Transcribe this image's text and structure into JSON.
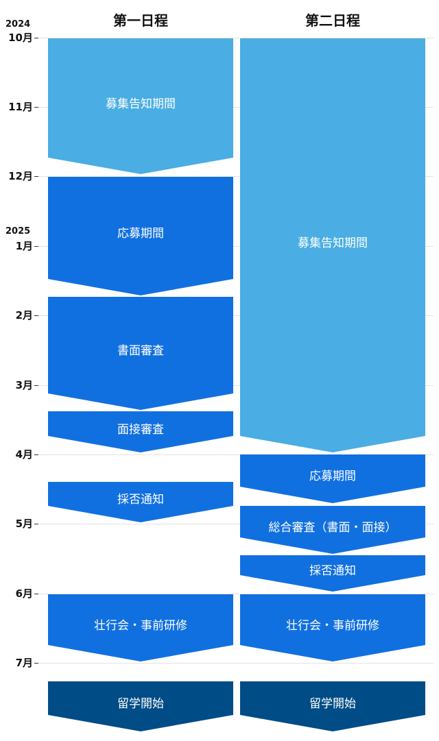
{
  "columns": {
    "first": "第一日程",
    "second": "第二日程"
  },
  "years": [
    "2024",
    "2025"
  ],
  "months": [
    "10月",
    "11月",
    "12月",
    "1月",
    "2月",
    "3月",
    "4月",
    "5月",
    "6月",
    "7月"
  ],
  "first_schedule": [
    {
      "label": "募集告知期間",
      "kind": "notice"
    },
    {
      "label": "応募期間",
      "kind": "mid"
    },
    {
      "label": "書面審査",
      "kind": "mid"
    },
    {
      "label": "面接審査",
      "kind": "mid"
    },
    {
      "label": "採否通知",
      "kind": "mid"
    },
    {
      "label": "壮行会・事前研修",
      "kind": "mid"
    },
    {
      "label": "留学開始",
      "kind": "dark"
    }
  ],
  "second_schedule": [
    {
      "label": "募集告知期間",
      "kind": "notice"
    },
    {
      "label": "応募期間",
      "kind": "mid"
    },
    {
      "label": "総合審査（書面・面接）",
      "kind": "mid"
    },
    {
      "label": "採否通知",
      "kind": "mid"
    },
    {
      "label": "壮行会・事前研修",
      "kind": "mid"
    },
    {
      "label": "留学開始",
      "kind": "dark"
    }
  ],
  "colors": {
    "notice": "#4aade3",
    "mid": "#1170e0",
    "dark": "#004c86"
  }
}
